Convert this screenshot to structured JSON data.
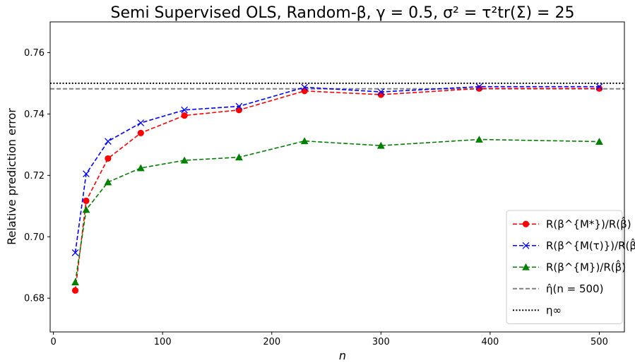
{
  "chart_data": {
    "type": "line",
    "title": "Semi Supervised OLS, Random-β, γ = 0.5, σ² = τ²tr(Σ) = 25",
    "xlabel": "n",
    "ylabel": "Relative prediction error",
    "xlim": [
      -3,
      523
    ],
    "ylim": [
      0.669,
      0.77
    ],
    "xticks": [
      0,
      100,
      200,
      300,
      400,
      500
    ],
    "yticks": [
      0.68,
      0.7,
      0.72,
      0.74,
      0.76
    ],
    "ytick_labels": [
      "0.68",
      "0.70",
      "0.72",
      "0.74",
      "0.76"
    ],
    "grid": false,
    "legend_position": "lower-right",
    "series": [
      {
        "name": "R(β^{M*})/R(β̂)",
        "color": "#ff0000",
        "marker": "circle",
        "linestyle": "dashed",
        "x": [
          20,
          30,
          50,
          80,
          120,
          170,
          230,
          300,
          390,
          500
        ],
        "y": [
          0.6825,
          0.7117,
          0.7255,
          0.7338,
          0.7395,
          0.7413,
          0.7475,
          0.7463,
          0.7483,
          0.7483
        ]
      },
      {
        "name": "R(β^{M(τ)})/R(β̂)",
        "color": "#0000ff",
        "marker": "x",
        "linestyle": "dashed",
        "x": [
          20,
          30,
          50,
          80,
          120,
          170,
          230,
          300,
          390,
          500
        ],
        "y": [
          0.6948,
          0.7205,
          0.7311,
          0.7371,
          0.7413,
          0.7425,
          0.7487,
          0.7472,
          0.7489,
          0.7489
        ]
      },
      {
        "name": "R(β^{M})/R(β̂)",
        "color": "#008000",
        "marker": "triangle",
        "linestyle": "dashed",
        "x": [
          20,
          30,
          50,
          80,
          120,
          170,
          230,
          300,
          390,
          500
        ],
        "y": [
          0.6852,
          0.7088,
          0.7178,
          0.7224,
          0.7249,
          0.7259,
          0.7312,
          0.7297,
          0.7317,
          0.731
        ]
      }
    ],
    "hlines": [
      {
        "name": "η̂(n = 500)",
        "y": 0.7482,
        "color": "#808080",
        "linestyle": "dashed"
      },
      {
        "name": "η∞",
        "y": 0.75,
        "color": "#000000",
        "linestyle": "dotted"
      }
    ]
  }
}
